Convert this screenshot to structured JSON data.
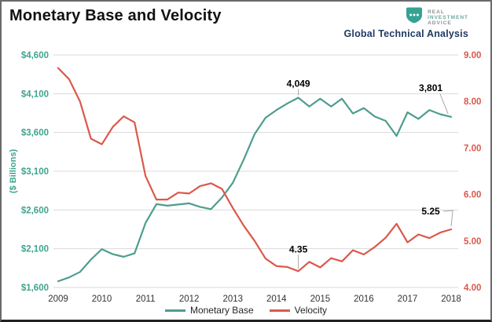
{
  "header": {
    "title": "Monetary Base and Velocity",
    "brand": {
      "logo_lines": [
        "REAL",
        "INVESTMENT",
        "ADVICE"
      ],
      "logo_color": "#36a293",
      "subtitle": "Global Technical Analysis",
      "subtitle_color": "#1e3a63"
    }
  },
  "chart_data": {
    "type": "line",
    "title": "Monetary Base and Velocity",
    "grid": true,
    "gridline_color": "#d9d9d9",
    "x": [
      2009,
      2009.25,
      2009.5,
      2009.75,
      2010,
      2010.25,
      2010.5,
      2010.75,
      2011,
      2011.25,
      2011.5,
      2011.75,
      2012,
      2012.25,
      2012.5,
      2012.75,
      2013,
      2013.25,
      2013.5,
      2013.75,
      2014,
      2014.25,
      2014.5,
      2014.75,
      2015,
      2015.25,
      2015.5,
      2015.75,
      2016,
      2016.25,
      2016.5,
      2016.75,
      2017,
      2017.25,
      2017.5,
      2017.75,
      2018
    ],
    "series": [
      {
        "name": "Monetary Base",
        "axis": "left",
        "color": "#4e9d8e",
        "values": [
          1680,
          1730,
          1800,
          1960,
          2095,
          2030,
          1995,
          2040,
          2430,
          2675,
          2655,
          2670,
          2685,
          2640,
          2610,
          2760,
          2950,
          3250,
          3580,
          3790,
          3890,
          3975,
          4049,
          3935,
          4035,
          3935,
          4035,
          3845,
          3915,
          3805,
          3750,
          3555,
          3860,
          3775,
          3890,
          3835,
          3801
        ]
      },
      {
        "name": "Velocity",
        "axis": "right",
        "color": "#db584b",
        "values": [
          8.72,
          8.48,
          8.0,
          7.2,
          7.08,
          7.45,
          7.68,
          7.55,
          6.4,
          5.89,
          5.89,
          6.04,
          6.02,
          6.18,
          6.24,
          6.12,
          5.71,
          5.33,
          5.0,
          4.62,
          4.46,
          4.44,
          4.35,
          4.55,
          4.43,
          4.63,
          4.56,
          4.8,
          4.71,
          4.87,
          5.07,
          5.37,
          4.97,
          5.14,
          5.06,
          5.18,
          5.25
        ]
      }
    ],
    "left_axis": {
      "label": "($ Billions)",
      "color": "#3fa48e",
      "range": [
        1600,
        4600
      ],
      "tick_values": [
        4600,
        4100,
        3600,
        3100,
        2600,
        2100,
        1600
      ],
      "tick_labels": [
        "$4,600",
        "$4,100",
        "$3,600",
        "$3,100",
        "$2,600",
        "$2,100",
        "$1,600"
      ]
    },
    "right_axis": {
      "color": "#db584b",
      "range": [
        4,
        9
      ],
      "tick_values": [
        9,
        8,
        7,
        6,
        5,
        4
      ],
      "tick_labels": [
        "9.00",
        "8.00",
        "7.00",
        "6.00",
        "5.00",
        "4.00"
      ]
    },
    "x_axis": {
      "tick_values": [
        2009,
        2010,
        2011,
        2012,
        2013,
        2014,
        2015,
        2016,
        2017,
        2018
      ],
      "tick_labels": [
        "2009",
        "2010",
        "2011",
        "2012",
        "2013",
        "2014",
        "2015",
        "2016",
        "2017",
        "2018"
      ],
      "color": "#333333"
    },
    "annotations": [
      {
        "text": "4,049",
        "series": 0,
        "x": 2014.5,
        "value": 4049
      },
      {
        "text": "3,801",
        "series": 0,
        "x": 2018,
        "value": 3801
      },
      {
        "text": "4.35",
        "series": 1,
        "x": 2014.5,
        "value": 4.35
      },
      {
        "text": "5.25",
        "series": 1,
        "x": 2018,
        "value": 5.25
      }
    ],
    "legend": [
      "Monetary Base",
      "Velocity"
    ],
    "legend_position": "bottom-center"
  }
}
